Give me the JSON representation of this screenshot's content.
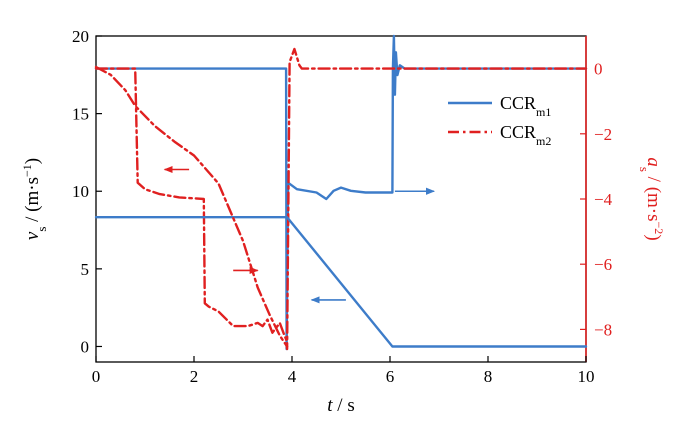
{
  "chart_data": {
    "type": "line",
    "colors": {
      "left_axis": "#000000",
      "right_axis": "#e02020",
      "ccr_m1": "#3d7cc9",
      "ccr_m2": "#e02020"
    },
    "xaxis": {
      "label_var": "t",
      "label_unit": " / s",
      "range": [
        0,
        10
      ],
      "ticks": [
        0,
        2,
        4,
        6,
        8,
        10
      ]
    },
    "yaxis_left": {
      "label_var": "v",
      "label_sub": "s",
      "label_unit": " / (m·s",
      "label_sup": "−1",
      "label_close": ")",
      "range": [
        -1,
        20
      ],
      "ticks": [
        0,
        5,
        10,
        15,
        20
      ]
    },
    "yaxis_right": {
      "label_var": "a",
      "label_sub": "s",
      "label_unit": " / (m·s",
      "label_sup": "−2",
      "label_close": ")",
      "range": [
        -9,
        1
      ],
      "ticks": [
        0,
        -2,
        -4,
        -6,
        -8
      ],
      "tick_labels": [
        "0",
        "−2",
        "−4",
        "−6",
        "−8"
      ]
    },
    "legend": {
      "position": "top-right",
      "entries": [
        {
          "series": "CCR_m1",
          "text": "CCR",
          "sub": "m1"
        },
        {
          "series": "CCR_m2",
          "text": "CCR",
          "sub": "m2"
        }
      ]
    },
    "series": [
      {
        "name": "CCR_m1",
        "quantity": "v_s",
        "axis": "left",
        "style": "solid",
        "x": [
          0,
          3.9,
          6.05,
          6.1,
          10
        ],
        "y": [
          8.33,
          8.33,
          0,
          0,
          0
        ]
      },
      {
        "name": "CCR_m1",
        "quantity": "a_s",
        "axis": "right",
        "style": "solid",
        "x": [
          0,
          3.88,
          3.89,
          3.92,
          4.1,
          4.5,
          4.7,
          4.85,
          5.0,
          5.2,
          5.5,
          6.05,
          6.06,
          6.08,
          6.1,
          6.12,
          6.15,
          6.2,
          6.3,
          10
        ],
        "y": [
          0,
          0,
          -8.6,
          -3.5,
          -3.7,
          -3.8,
          -4.0,
          -3.75,
          -3.65,
          -3.75,
          -3.8,
          -3.8,
          0,
          1.0,
          -0.8,
          0.5,
          -0.2,
          0.1,
          0,
          0
        ]
      },
      {
        "name": "CCR_m2",
        "quantity": "v_s",
        "axis": "left",
        "style": "dashdot",
        "x": [
          0,
          0.3,
          0.6,
          0.8,
          1.2,
          1.6,
          2.0,
          2.5,
          3.0,
          3.3,
          3.55,
          3.75,
          3.9
        ],
        "y": [
          18,
          17.5,
          16.5,
          15.5,
          14.2,
          13.2,
          12.3,
          10.5,
          6.8,
          3.8,
          2.0,
          0.7,
          0
        ]
      },
      {
        "name": "CCR_m2",
        "quantity": "a_s",
        "axis": "right",
        "style": "dashdot",
        "x": [
          0,
          0.8,
          0.85,
          1.0,
          1.3,
          1.7,
          2.0,
          2.2,
          2.22,
          2.3,
          2.5,
          2.8,
          3.1,
          3.3,
          3.4,
          3.5,
          3.6,
          3.75,
          3.85,
          3.88,
          3.9,
          3.95,
          4.05,
          4.15,
          4.2,
          4.3,
          6.05,
          10
        ],
        "y": [
          0,
          0,
          -3.5,
          -3.7,
          -3.85,
          -3.95,
          -3.98,
          -4.0,
          -7.2,
          -7.3,
          -7.45,
          -7.9,
          -7.9,
          -7.8,
          -7.9,
          -7.7,
          -8.1,
          -7.8,
          -8.2,
          -8.3,
          -8.6,
          0.2,
          0.6,
          0.1,
          0,
          0,
          0,
          0
        ]
      }
    ],
    "annotations": [
      {
        "kind": "arrow",
        "color": "#e02020",
        "from": [
          1.9,
          11.4
        ],
        "to": [
          1.4,
          11.4
        ],
        "meaning": "left axis"
      },
      {
        "kind": "arrow",
        "color": "#e02020",
        "from": [
          2.8,
          4.9
        ],
        "to": [
          3.3,
          4.9
        ],
        "meaning": "right axis"
      },
      {
        "kind": "arrow",
        "color": "#3d7cc9",
        "from": [
          5.1,
          3.0
        ],
        "to": [
          4.4,
          3.0
        ],
        "meaning": "left axis"
      },
      {
        "kind": "arrow",
        "color": "#3d7cc9",
        "from": [
          6.1,
          10.0
        ],
        "to": [
          6.9,
          10.0
        ],
        "meaning": "right axis"
      }
    ]
  }
}
